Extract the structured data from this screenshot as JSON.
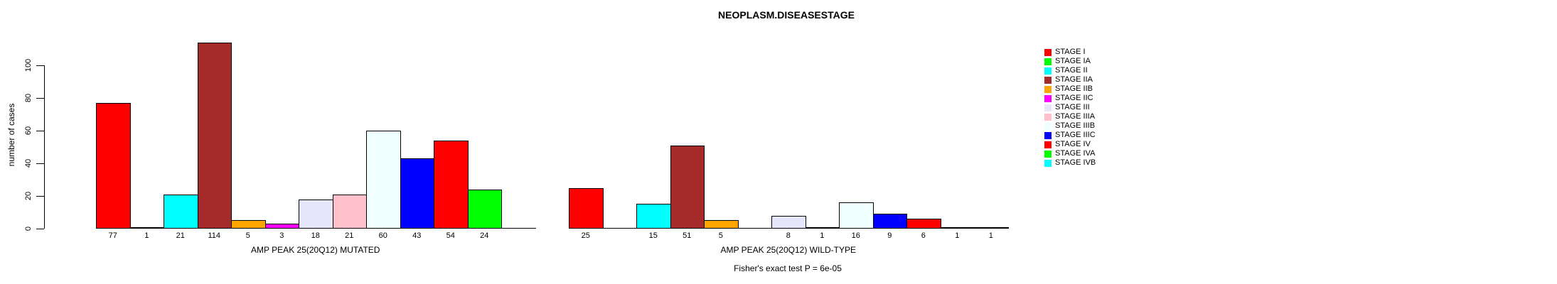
{
  "title": "NEOPLASM.DISEASESTAGE",
  "y_axis": {
    "label": "number of cases",
    "tick_labels": [
      "0",
      "20",
      "40",
      "60",
      "80",
      "100"
    ],
    "tick_values": [
      0,
      20,
      40,
      60,
      80,
      100
    ],
    "max": 100
  },
  "footer": {
    "fisher_text": "Fisher's exact test P = 6e-05"
  },
  "legend": {
    "position": "right",
    "entries": [
      {
        "label": "STAGE I",
        "color": "#FF0000"
      },
      {
        "label": "STAGE IA",
        "color": "#00FF00"
      },
      {
        "label": "STAGE II",
        "color": "#00FFFF"
      },
      {
        "label": "STAGE IIA",
        "color": "#A52A2A"
      },
      {
        "label": "STAGE IIB",
        "color": "#FFA500"
      },
      {
        "label": "STAGE IIC",
        "color": "#FF00FF"
      },
      {
        "label": "STAGE III",
        "color": "#E6E6FA"
      },
      {
        "label": "STAGE IIIA",
        "color": "#FFC0CB"
      },
      {
        "label": "STAGE IIIB",
        "color": "#F0FFFF"
      },
      {
        "label": "STAGE IIIC",
        "color": "#0000FF"
      },
      {
        "label": "STAGE IV",
        "color": "#FF0000"
      },
      {
        "label": "STAGE IVA",
        "color": "#00FF00"
      },
      {
        "label": "STAGE IVB",
        "color": "#00FFFF"
      }
    ]
  },
  "chart_data": [
    {
      "type": "bar",
      "xlabel": "AMP PEAK 25(20Q12) MUTATED",
      "ylabel": "number of cases",
      "ylim": [
        0,
        100
      ],
      "grid": false,
      "categories": [
        "STAGE I",
        "STAGE IA",
        "STAGE II",
        "STAGE IIA",
        "STAGE IIB",
        "STAGE IIC",
        "STAGE III",
        "STAGE IIIA",
        "STAGE IIIB",
        "STAGE IIIC",
        "STAGE IV",
        "STAGE IVA",
        "STAGE IVB"
      ],
      "values": [
        77,
        1,
        21,
        114,
        5,
        3,
        18,
        21,
        60,
        43,
        54,
        24,
        0
      ],
      "bar_labels": [
        "77",
        "1",
        "21",
        "114",
        "5",
        "3",
        "18",
        "21",
        "60",
        "43",
        "54",
        "24",
        ""
      ],
      "colors": [
        "#FF0000",
        "#00FF00",
        "#00FFFF",
        "#A52A2A",
        "#FFA500",
        "#FF00FF",
        "#E6E6FA",
        "#FFC0CB",
        "#F0FFFF",
        "#0000FF",
        "#FF0000",
        "#00FF00",
        "#00FFFF"
      ]
    },
    {
      "type": "bar",
      "xlabel": "AMP PEAK 25(20Q12) WILD-TYPE",
      "ylabel": "number of cases",
      "ylim": [
        0,
        100
      ],
      "grid": false,
      "categories": [
        "STAGE I",
        "STAGE IA",
        "STAGE II",
        "STAGE IIA",
        "STAGE IIB",
        "STAGE IIC",
        "STAGE III",
        "STAGE IIIA",
        "STAGE IIIB",
        "STAGE IIIC",
        "STAGE IV",
        "STAGE IVA",
        "STAGE IVB"
      ],
      "values": [
        25,
        0,
        15,
        51,
        5,
        0,
        8,
        1,
        16,
        9,
        6,
        1,
        1
      ],
      "bar_labels": [
        "25",
        "",
        "15",
        "51",
        "5",
        "",
        "8",
        "1",
        "16",
        "9",
        "6",
        "1",
        "1"
      ],
      "colors": [
        "#FF0000",
        "#00FF00",
        "#00FFFF",
        "#A52A2A",
        "#FFA500",
        "#FF00FF",
        "#E6E6FA",
        "#FFC0CB",
        "#F0FFFF",
        "#0000FF",
        "#FF0000",
        "#00FF00",
        "#00FFFF"
      ]
    }
  ]
}
